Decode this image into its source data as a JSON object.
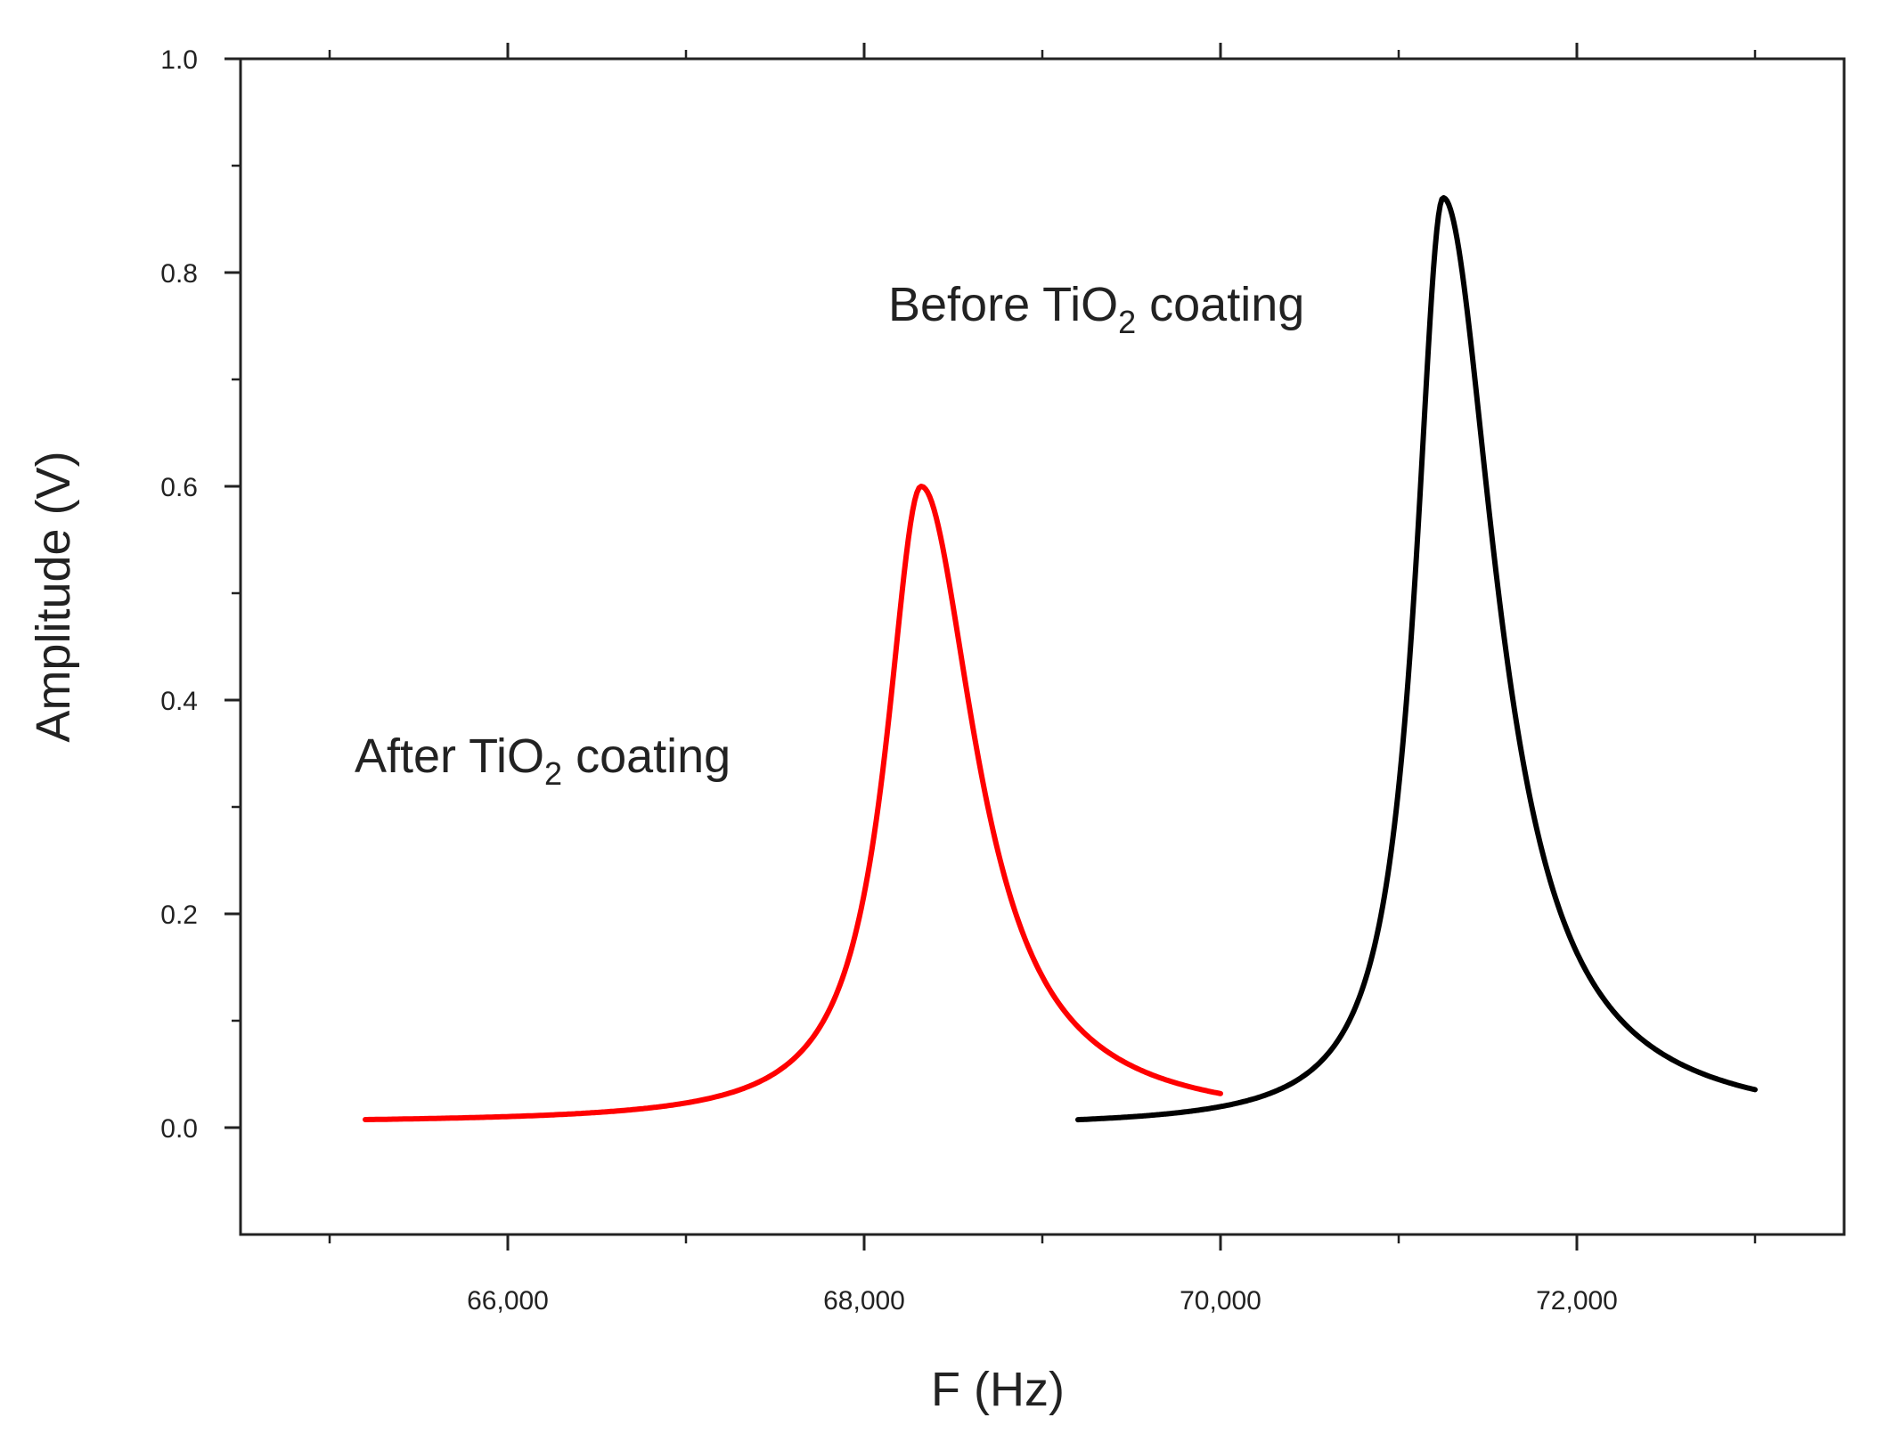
{
  "chart_data": {
    "type": "line",
    "title": "",
    "xlabel": "F (Hz)",
    "ylabel": "Amplitude (V)",
    "xlim": [
      64500,
      73500
    ],
    "ylim": [
      -0.1,
      1.0
    ],
    "x_major_ticks": [
      66000,
      68000,
      70000,
      72000
    ],
    "x_tick_labels": [
      "66,000",
      "68,000",
      "70,000",
      "72,000"
    ],
    "y_major_ticks": [
      0.0,
      0.2,
      0.4,
      0.6,
      0.8,
      1.0
    ],
    "y_tick_labels": [
      "0.0",
      "0.2",
      "0.4",
      "0.6",
      "0.8",
      "1.0"
    ],
    "grid": false,
    "legend": false,
    "series": [
      {
        "name": "After TiO2 coating",
        "color": "#ff0000",
        "x_start": 65200,
        "x_end": 70000,
        "peak_frequency": 68320,
        "peak_amplitude": 0.6,
        "baseline": 0.004,
        "half_width": 240,
        "asymmetry": 1.55
      },
      {
        "name": "Before TiO2 coating",
        "color": "#000000",
        "x_start": 69200,
        "x_end": 73000,
        "peak_frequency": 71250,
        "peak_amplitude": 0.87,
        "baseline": 0.0,
        "half_width": 190,
        "asymmetry": 1.9
      }
    ],
    "annotations": [
      {
        "text": "After TiO",
        "subscript": "2",
        "suffix": " coating"
      },
      {
        "text": "Before TiO",
        "subscript": "2",
        "suffix": " coating"
      }
    ]
  }
}
